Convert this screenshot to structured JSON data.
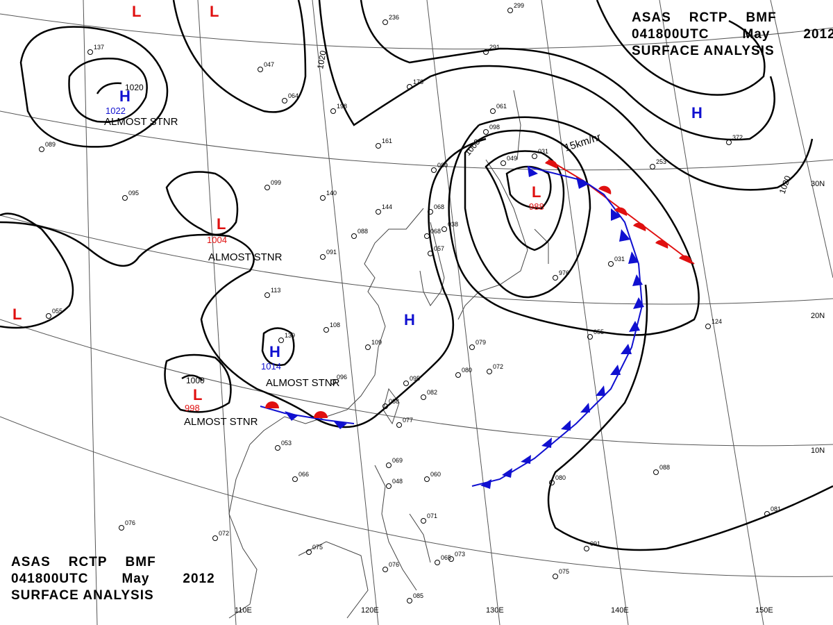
{
  "header": {
    "agency": "ASAS",
    "station": "RCTP",
    "bureau": "BMF",
    "datetime": "041800UTC",
    "month": "May",
    "year": "2012",
    "product": "SURFACE ANALYSIS"
  },
  "colors": {
    "high": "#1010d0",
    "low": "#e01010",
    "warm_front": "#e01010",
    "cold_front": "#1010d0",
    "isobar": "#000000",
    "grid": "#555555",
    "coast": "#444444"
  },
  "grid_labels": {
    "lat": [
      "30N",
      "20N",
      "10N"
    ],
    "lon": [
      "110E",
      "120E",
      "130E",
      "140E",
      "150E"
    ]
  },
  "isobar_labels": [
    "1020",
    "1020",
    "1000",
    "1000",
    "1020"
  ],
  "pressure_centers": [
    {
      "type": "H",
      "value": "1022"
    },
    {
      "type": "H",
      "value": ""
    },
    {
      "type": "H",
      "value": ""
    },
    {
      "type": "H",
      "value": "1014"
    },
    {
      "type": "L",
      "value": "1004"
    },
    {
      "type": "L",
      "value": "998"
    },
    {
      "type": "L",
      "value": "988"
    },
    {
      "type": "L",
      "value": ""
    },
    {
      "type": "L",
      "value": ""
    },
    {
      "type": "L",
      "value": ""
    }
  ],
  "annotations": [
    "ALMOST STNR",
    "ALMOST STNR",
    "ALMOST STNR",
    "ALMOST STNR",
    "15km/hr"
  ],
  "station_numbers": [
    "137",
    "089",
    "095",
    "055",
    "047",
    "064",
    "161",
    "099",
    "140",
    "144",
    "091",
    "088",
    "113",
    "139",
    "108",
    "109",
    "096",
    "053",
    "068",
    "088",
    "077",
    "082",
    "095",
    "080",
    "068",
    "038",
    "057",
    "079",
    "080",
    "072",
    "061",
    "098",
    "049",
    "031",
    "976",
    "031",
    "055",
    "124",
    "253",
    "372",
    "178",
    "198",
    "236",
    "291",
    "299",
    "069",
    "048",
    "060",
    "071",
    "066",
    "075",
    "076",
    "085",
    "073",
    "080",
    "091",
    "075",
    "088",
    "081",
    "072",
    "076",
    "065"
  ]
}
